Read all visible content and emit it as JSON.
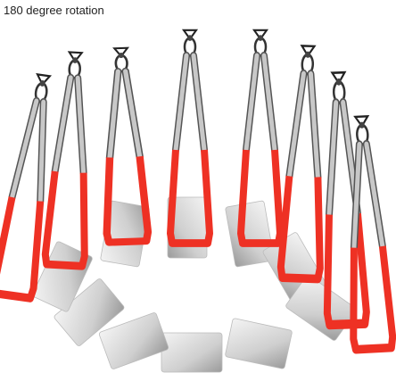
{
  "title": "180 degree rotation"
}
